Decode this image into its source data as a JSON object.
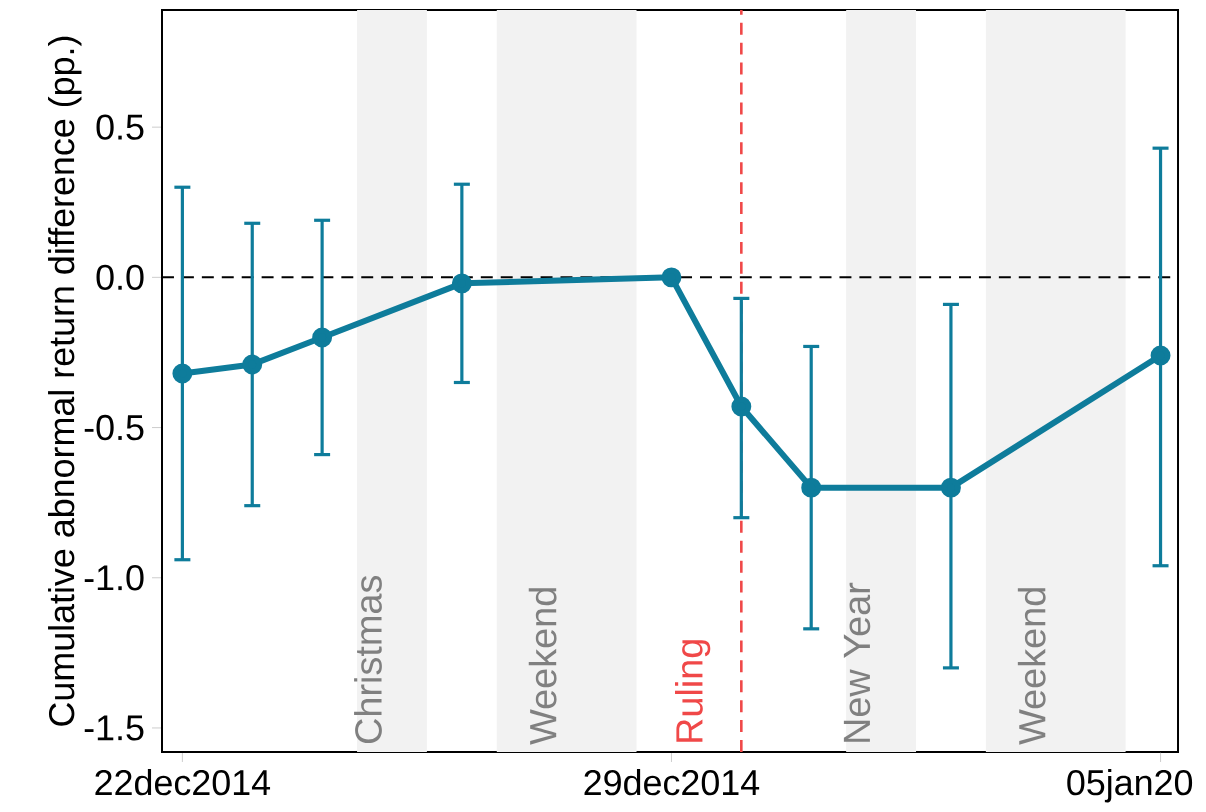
{
  "chart_data": {
    "type": "line",
    "ylabel": "Cumulative abnormal return difference (pp.)",
    "x": [
      "2014-12-22",
      "2014-12-23",
      "2014-12-24",
      "2014-12-26",
      "2014-12-29",
      "2014-12-30",
      "2014-12-31",
      "2015-01-02",
      "2015-01-05"
    ],
    "series": [
      {
        "color": "#0e7c9b",
        "values": [
          -0.32,
          -0.29,
          -0.2,
          -0.02,
          0.0,
          -0.43,
          -0.7,
          -0.7,
          -0.26
        ],
        "errors": [
          [
            -0.94,
            0.3
          ],
          [
            -0.76,
            0.18
          ],
          [
            -0.59,
            0.19
          ],
          [
            -0.35,
            0.31
          ],
          null,
          [
            -0.8,
            -0.07
          ],
          [
            -1.17,
            -0.23
          ],
          [
            -1.3,
            -0.09
          ],
          [
            -0.96,
            0.43
          ]
        ]
      }
    ],
    "marker": "circle",
    "line_style": "solid",
    "xlim": [
      "2014-12-21T17:00",
      "2015-01-05T06:00"
    ],
    "xticks": [
      {
        "value": "2014-12-22",
        "label": "22dec2014"
      },
      {
        "value": "2014-12-29",
        "label": "29dec2014"
      },
      {
        "value": "2015-01-05",
        "label": "05jan20"
      }
    ],
    "ylim": [
      -1.58,
      0.89
    ],
    "yticks": [
      {
        "value": -1.5,
        "label": "-1.5"
      },
      {
        "value": -1.0,
        "label": "-1.0"
      },
      {
        "value": -0.5,
        "label": "-0.5"
      },
      {
        "value": 0,
        "label": "0.0"
      },
      {
        "value": 0.5,
        "label": "0.5"
      }
    ],
    "ref_lines": [
      {
        "axis": "y",
        "value": 0,
        "color": "#000000",
        "line_style": "dashed"
      },
      {
        "axis": "x",
        "value": "2014-12-30",
        "label": "Ruling",
        "color": "#f04848",
        "line_style": "dashed"
      }
    ],
    "bands": [
      {
        "axis": "x",
        "from": "2014-12-24T12:00",
        "to": "2014-12-25T12:00",
        "label": "Christmas",
        "color": "#f2f2f2"
      },
      {
        "axis": "x",
        "from": "2014-12-26T12:00",
        "to": "2014-12-28T12:00",
        "label": "Weekend",
        "color": "#f2f2f2"
      },
      {
        "axis": "x",
        "from": "2014-12-31T12:00",
        "to": "2015-01-01T12:00",
        "label": "New Year",
        "color": "#f2f2f2"
      },
      {
        "axis": "x",
        "from": "2015-01-02T12:00",
        "to": "2015-01-04T12:00",
        "label": "Weekend",
        "color": "#f2f2f2"
      }
    ]
  }
}
